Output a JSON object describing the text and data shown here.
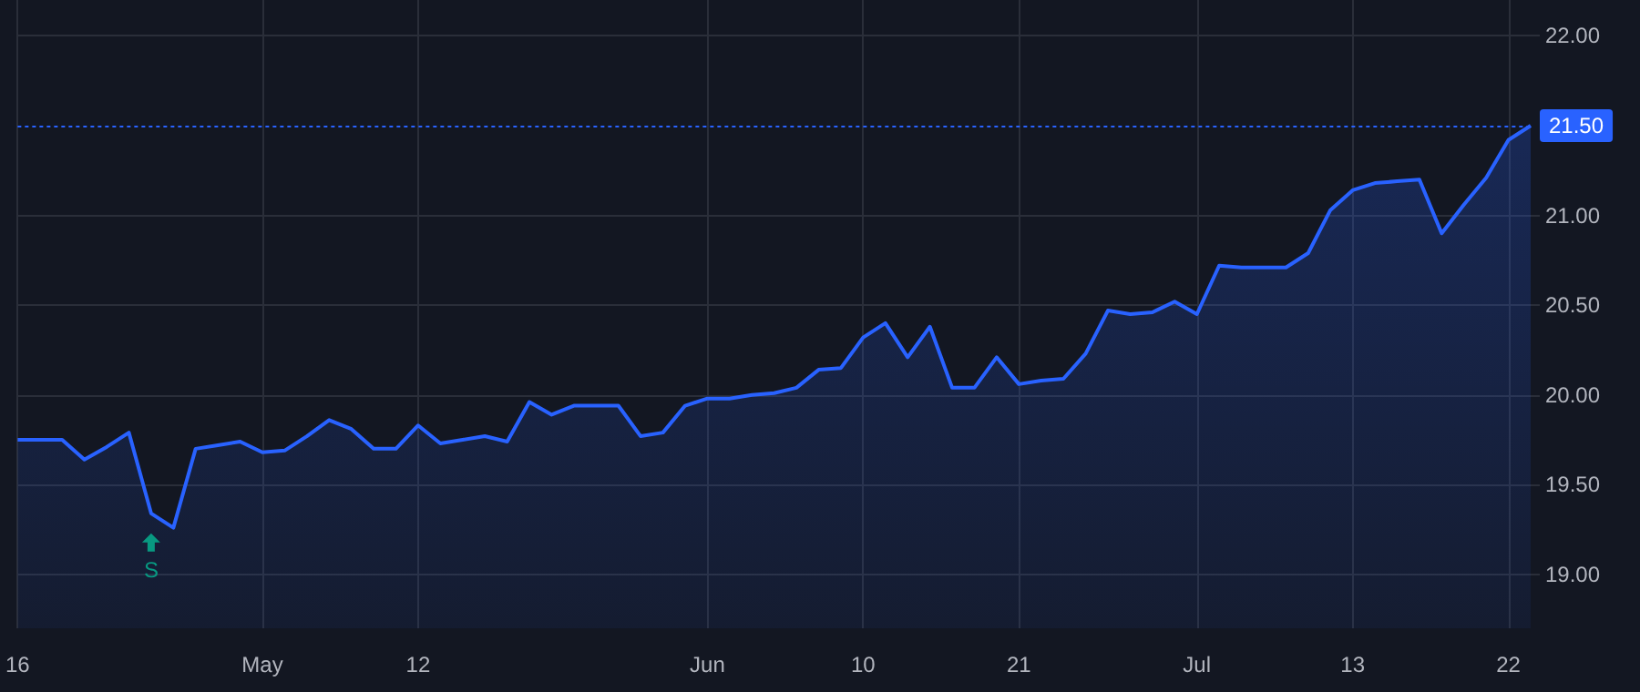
{
  "chart_data": {
    "type": "area",
    "categories": [
      "16",
      null,
      null,
      null,
      null,
      null,
      null,
      null,
      null,
      null,
      null,
      "May",
      null,
      null,
      null,
      null,
      null,
      null,
      "12",
      null,
      null,
      null,
      null,
      null,
      null,
      null,
      null,
      null,
      null,
      null,
      null,
      "Jun",
      null,
      null,
      null,
      null,
      null,
      null,
      "10",
      null,
      null,
      null,
      null,
      null,
      null,
      "21",
      null,
      null,
      null,
      null,
      null,
      null,
      null,
      "Jul",
      null,
      null,
      null,
      null,
      null,
      null,
      "13",
      null,
      null,
      null,
      null,
      null,
      null,
      "22",
      null
    ],
    "series": [
      {
        "color": "#2962ff",
        "values": [
          19.75,
          19.75,
          19.75,
          19.64,
          19.71,
          19.79,
          19.34,
          19.26,
          19.7,
          19.72,
          19.74,
          19.68,
          19.69,
          19.77,
          19.86,
          19.81,
          19.7,
          19.7,
          19.83,
          19.73,
          19.75,
          19.77,
          19.74,
          19.96,
          19.89,
          19.94,
          19.94,
          19.94,
          19.77,
          19.79,
          19.94,
          19.98,
          19.98,
          20.0,
          20.01,
          20.04,
          20.14,
          20.15,
          20.32,
          20.4,
          20.21,
          20.38,
          20.04,
          20.04,
          20.21,
          20.06,
          20.08,
          20.09,
          20.23,
          20.47,
          20.45,
          20.46,
          20.52,
          20.45,
          20.72,
          20.71,
          20.71,
          20.71,
          20.79,
          21.03,
          21.14,
          21.18,
          21.19,
          21.2,
          20.9,
          21.06,
          21.21,
          21.42,
          21.5
        ]
      }
    ],
    "ylim": [
      18.7,
      22.2
    ],
    "yticks": [
      {
        "value": 19,
        "label": "19.00"
      },
      {
        "value": 19.5,
        "label": "19.50"
      },
      {
        "value": 20,
        "label": "20.00"
      },
      {
        "value": 20.5,
        "label": "20.50"
      },
      {
        "value": 21,
        "label": "21.00"
      },
      {
        "value": 22,
        "label": "22.00"
      }
    ],
    "grid": true,
    "ref_lines": [
      {
        "axis": "y",
        "value": 21.5,
        "label": "21.50",
        "color": "#2962ff",
        "line_style": "dotted"
      }
    ],
    "annotations": [
      {
        "text": "S",
        "y": 19.34
      }
    ]
  }
}
